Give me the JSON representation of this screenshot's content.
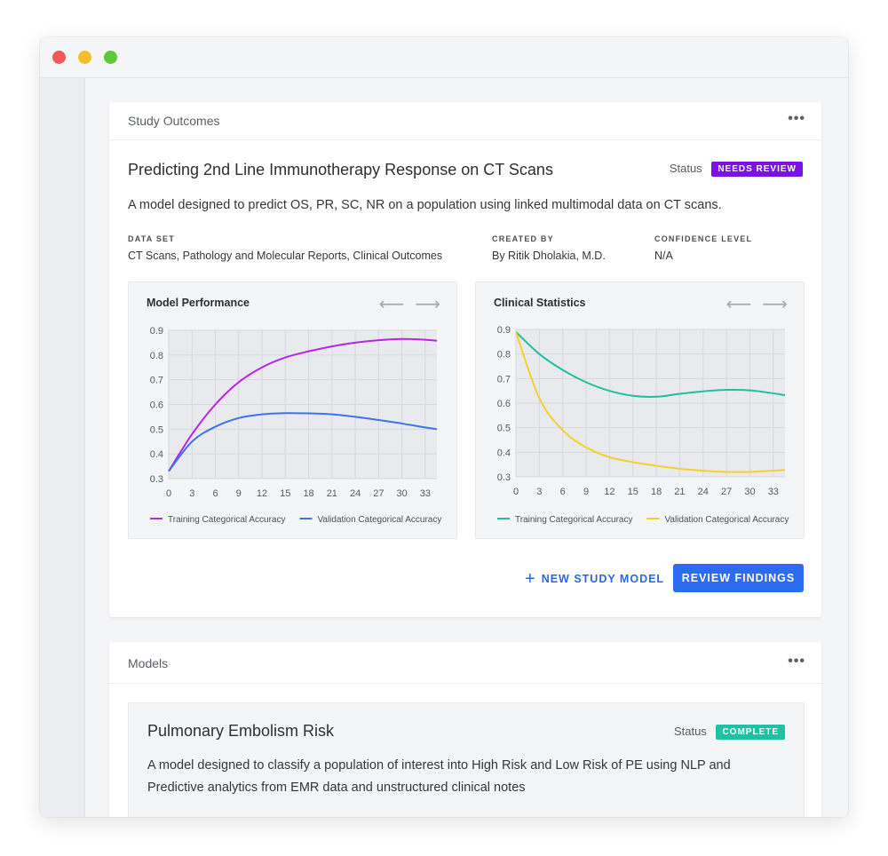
{
  "window": {
    "controls": [
      "close",
      "minimize",
      "maximize"
    ]
  },
  "outcomes": {
    "header": "Study Outcomes",
    "more": "•••",
    "title": "Predicting 2nd Line Immunotherapy Response on CT Scans",
    "status_label": "Status",
    "status": "NEEDS REVIEW",
    "status_color": "#7a12e6",
    "description": "A model designed to predict OS, PR, SC, NR on a population using linked multimodal data on CT scans.",
    "meta": {
      "dataset_label": "DATA SET",
      "dataset": "CT Scans, Pathology and Molecular Reports, Clinical Outcomes",
      "created_label": "CREATED BY",
      "created": "By Ritik Dholakia, M.D.",
      "confidence_label": "CONFIDENCE LEVEL",
      "confidence": "N/A"
    },
    "new_model_label": "NEW STUDY MODEL",
    "review_label": "REVIEW FINDINGS"
  },
  "nav_arrows": {
    "prev": "⟵",
    "next": "⟶"
  },
  "chart_data": [
    {
      "type": "line",
      "title": "Model Performance",
      "xlabel": "",
      "ylabel": "",
      "xlim": [
        0,
        34.5
      ],
      "ylim": [
        0.3,
        0.9
      ],
      "x_ticks": [
        0,
        3,
        6,
        9,
        12,
        15,
        18,
        21,
        24,
        27,
        30,
        33
      ],
      "y_ticks": [
        0.9,
        0.8,
        0.7,
        0.6,
        0.5,
        0.4,
        0.3
      ],
      "grid": true,
      "legend": "bottom",
      "series": [
        {
          "name": "Training Categorical Accuracy",
          "color": "#b526e6",
          "x": [
            0,
            3,
            6,
            9,
            12,
            15,
            18,
            21,
            24,
            27,
            30,
            33,
            34.5
          ],
          "y": [
            0.33,
            0.48,
            0.6,
            0.69,
            0.75,
            0.79,
            0.815,
            0.835,
            0.85,
            0.86,
            0.865,
            0.862,
            0.858
          ]
        },
        {
          "name": "Validation Categorical Accuracy",
          "color": "#3d72f0",
          "x": [
            0,
            3,
            6,
            9,
            12,
            15,
            18,
            21,
            24,
            27,
            30,
            33,
            34.5
          ],
          "y": [
            0.33,
            0.45,
            0.51,
            0.545,
            0.56,
            0.565,
            0.564,
            0.56,
            0.55,
            0.537,
            0.523,
            0.507,
            0.5
          ]
        }
      ]
    },
    {
      "type": "line",
      "title": "Clinical Statistics",
      "xlabel": "",
      "ylabel": "",
      "xlim": [
        0,
        34.5
      ],
      "ylim": [
        0.3,
        0.9
      ],
      "x_ticks": [
        0,
        3,
        6,
        9,
        12,
        15,
        18,
        21,
        24,
        27,
        30,
        33
      ],
      "y_ticks": [
        0.9,
        0.8,
        0.7,
        0.6,
        0.5,
        0.4,
        0.3
      ],
      "grid": true,
      "legend": "bottom",
      "series": [
        {
          "name": "Training Categorical Accuracy",
          "color": "#1fbfa0",
          "x": [
            0,
            3,
            6,
            9,
            12,
            15,
            18,
            21,
            24,
            27,
            30,
            33,
            34.5
          ],
          "y": [
            0.89,
            0.8,
            0.735,
            0.685,
            0.65,
            0.63,
            0.626,
            0.638,
            0.648,
            0.654,
            0.652,
            0.64,
            0.632
          ]
        },
        {
          "name": "Validation Categorical Accuracy",
          "color": "#f5d02c",
          "x": [
            0,
            3,
            6,
            9,
            12,
            15,
            18,
            21,
            24,
            27,
            30,
            33,
            34.5
          ],
          "y": [
            0.89,
            0.62,
            0.49,
            0.42,
            0.38,
            0.36,
            0.345,
            0.333,
            0.325,
            0.32,
            0.32,
            0.325,
            0.328
          ]
        }
      ]
    }
  ],
  "models": {
    "header": "Models",
    "more": "•••",
    "item": {
      "title": "Pulmonary Embolism Risk",
      "status_label": "Status",
      "status": "COMPLETE",
      "status_color": "#1fc1a3",
      "description": "A model designed to classify a population of interest into High Risk and Low Risk of PE using NLP and Predictive analytics from EMR data and unstructured clinical notes"
    }
  }
}
